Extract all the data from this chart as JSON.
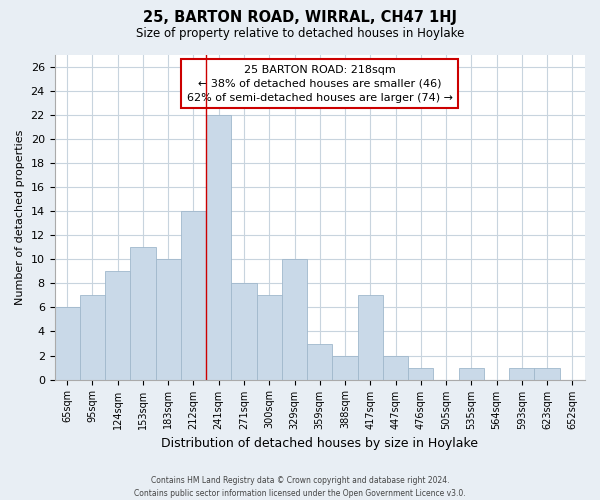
{
  "title": "25, BARTON ROAD, WIRRAL, CH47 1HJ",
  "subtitle": "Size of property relative to detached houses in Hoylake",
  "xlabel": "Distribution of detached houses by size in Hoylake",
  "ylabel": "Number of detached properties",
  "bar_labels": [
    "65sqm",
    "95sqm",
    "124sqm",
    "153sqm",
    "183sqm",
    "212sqm",
    "241sqm",
    "271sqm",
    "300sqm",
    "329sqm",
    "359sqm",
    "388sqm",
    "417sqm",
    "447sqm",
    "476sqm",
    "505sqm",
    "535sqm",
    "564sqm",
    "593sqm",
    "623sqm",
    "652sqm"
  ],
  "bar_values": [
    6,
    7,
    9,
    11,
    10,
    14,
    22,
    8,
    7,
    10,
    3,
    2,
    7,
    2,
    1,
    0,
    1,
    0,
    1,
    1,
    0
  ],
  "bar_color": "#c9d9e8",
  "bar_edge_color": "#a0b8cc",
  "vline_x": 5.5,
  "vline_color": "#cc0000",
  "annotation_line1": "25 BARTON ROAD: 218sqm",
  "annotation_line2": "← 38% of detached houses are smaller (46)",
  "annotation_line3": "62% of semi-detached houses are larger (74) →",
  "ylim": [
    0,
    27
  ],
  "yticks": [
    0,
    2,
    4,
    6,
    8,
    10,
    12,
    14,
    16,
    18,
    20,
    22,
    24,
    26
  ],
  "grid_color": "#c8d4de",
  "footnote": "Contains HM Land Registry data © Crown copyright and database right 2024.\nContains public sector information licensed under the Open Government Licence v3.0.",
  "bg_color": "#e8eef4",
  "plot_bg_color": "#ffffff"
}
